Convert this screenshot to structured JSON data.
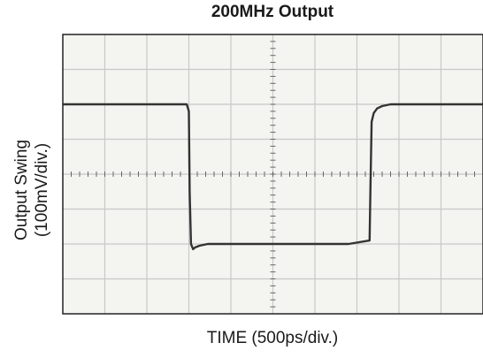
{
  "chart_data": {
    "type": "line",
    "title": "200MHz Output",
    "xlabel": "TIME (500ps/div.)",
    "ylabel_line1": "Output Swing",
    "ylabel_line2": "(100mV/div.)",
    "x_divisions": 10,
    "y_divisions": 8,
    "xlim": [
      0,
      10
    ],
    "ylim": [
      0,
      8
    ],
    "grid": true,
    "center_axis_ticks": true,
    "series": [
      {
        "x": [
          0,
          2.95,
          3.0,
          3.02,
          3.05,
          3.1,
          3.15,
          3.25,
          3.45,
          3.8,
          4.2,
          6.8,
          7.3,
          7.32,
          7.35,
          7.4,
          7.48,
          7.6,
          7.8,
          8.2,
          8.6,
          10
        ],
        "y": [
          6.0,
          6.0,
          5.8,
          3.5,
          2.0,
          1.85,
          1.9,
          1.95,
          2.0,
          2.0,
          2.0,
          2.0,
          2.1,
          3.5,
          5.5,
          5.75,
          5.88,
          5.95,
          6.0,
          6.0,
          6.0,
          6.0
        ]
      }
    ],
    "colors": {
      "trace": "#333333",
      "grid": "#c8c8c8",
      "frame": "#222222",
      "background": "#f4f4f0"
    }
  }
}
